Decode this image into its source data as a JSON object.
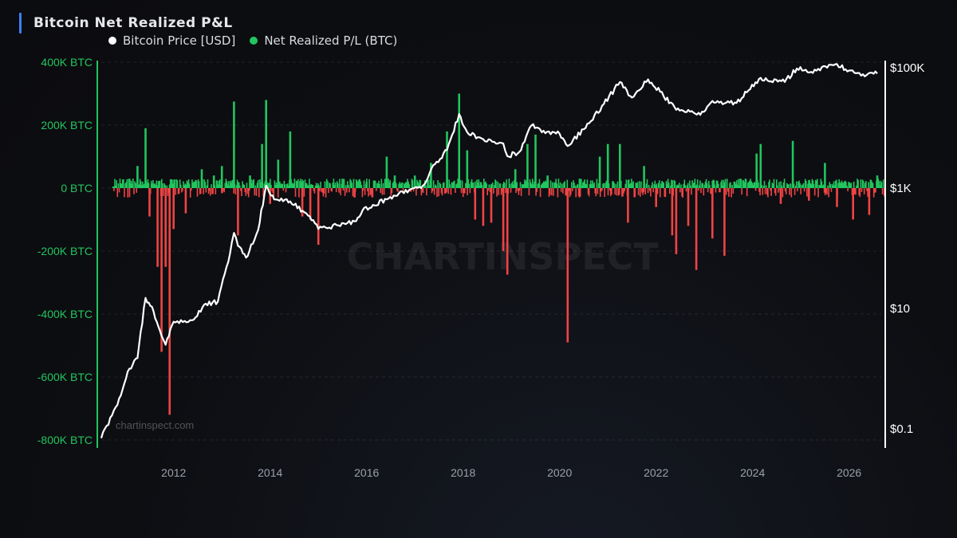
{
  "title": "Bitcoin Net Realized P&L",
  "legend": {
    "price_label": "Bitcoin Price [USD]",
    "pl_label": "Net Realized P/L (BTC)"
  },
  "watermark": "CHARTINSPECT",
  "watermark_small": "chartinspect.com",
  "colors": {
    "price": "#ffffff",
    "profit": "#22c55e",
    "loss": "#ef4444",
    "left_axis": "#22c55e",
    "title_accent": "#3b82f6"
  },
  "chart_data": {
    "type": "bar",
    "title": "Bitcoin Net Realized P&L",
    "grid": true,
    "legend_position": "top-left",
    "x_axis": {
      "type": "date",
      "range": [
        "2010-07",
        "2026-09"
      ],
      "ticks": [
        "2012",
        "2014",
        "2016",
        "2018",
        "2020",
        "2022",
        "2024",
        "2026"
      ]
    },
    "left_axis": {
      "label": "",
      "range": [
        -800000,
        400000
      ],
      "ticks": [
        {
          "value": 400000,
          "label": "400K BTC"
        },
        {
          "value": 200000,
          "label": "200K BTC"
        },
        {
          "value": 0,
          "label": "0 BTC"
        },
        {
          "value": -200000,
          "label": "-200K BTC"
        },
        {
          "value": -400000,
          "label": "-400K BTC"
        },
        {
          "value": -600000,
          "label": "-600K BTC"
        },
        {
          "value": -800000,
          "label": "-800K BTC"
        }
      ]
    },
    "right_axis": {
      "label": "",
      "scale": "log",
      "range": [
        0.05,
        300000
      ],
      "ticks": [
        {
          "value": 100000,
          "label": "$100K"
        },
        {
          "value": 1000,
          "label": "$1K"
        },
        {
          "value": 10,
          "label": "$10"
        },
        {
          "value": 0.1,
          "label": "$0.1"
        }
      ]
    },
    "series": [
      {
        "name": "Bitcoin Price [USD]",
        "type": "line",
        "axis": "right",
        "points": [
          [
            "2010-07",
            0.07
          ],
          [
            "2010-11",
            0.25
          ],
          [
            "2011-02",
            1.0
          ],
          [
            "2011-04",
            1.5
          ],
          [
            "2011-06",
            15
          ],
          [
            "2011-08",
            9
          ],
          [
            "2011-10",
            3.5
          ],
          [
            "2011-11",
            2.5
          ],
          [
            "2012-01",
            6
          ],
          [
            "2012-06",
            6.5
          ],
          [
            "2012-09",
            12
          ],
          [
            "2012-12",
            13
          ],
          [
            "2013-03",
            80
          ],
          [
            "2013-04",
            180
          ],
          [
            "2013-05",
            110
          ],
          [
            "2013-07",
            70
          ],
          [
            "2013-10",
            200
          ],
          [
            "2013-12",
            1100
          ],
          [
            "2014-02",
            650
          ],
          [
            "2014-06",
            600
          ],
          [
            "2014-10",
            380
          ],
          [
            "2015-01",
            210
          ],
          [
            "2015-06",
            240
          ],
          [
            "2015-10",
            280
          ],
          [
            "2015-12",
            430
          ],
          [
            "2016-06",
            650
          ],
          [
            "2016-12",
            960
          ],
          [
            "2017-03",
            1100
          ],
          [
            "2017-06",
            2500
          ],
          [
            "2017-09",
            4300
          ],
          [
            "2017-12",
            17000
          ],
          [
            "2018-02",
            8500
          ],
          [
            "2018-06",
            6500
          ],
          [
            "2018-11",
            5500
          ],
          [
            "2018-12",
            3400
          ],
          [
            "2019-03",
            4000
          ],
          [
            "2019-06",
            11000
          ],
          [
            "2019-09",
            9000
          ],
          [
            "2020-01",
            8000
          ],
          [
            "2020-03",
            5000
          ],
          [
            "2020-07",
            9500
          ],
          [
            "2020-12",
            25000
          ],
          [
            "2021-04",
            58000
          ],
          [
            "2021-07",
            32000
          ],
          [
            "2021-11",
            64000
          ],
          [
            "2022-02",
            40000
          ],
          [
            "2022-06",
            20000
          ],
          [
            "2022-12",
            16500
          ],
          [
            "2023-03",
            28000
          ],
          [
            "2023-09",
            26000
          ],
          [
            "2023-12",
            42000
          ],
          [
            "2024-03",
            68000
          ],
          [
            "2024-09",
            58000
          ],
          [
            "2024-12",
            97000
          ],
          [
            "2025-04",
            82000
          ],
          [
            "2025-08",
            112000
          ],
          [
            "2025-10",
            115000
          ],
          [
            "2026-01",
            90000
          ],
          [
            "2026-04",
            74000
          ],
          [
            "2026-08",
            80000
          ]
        ]
      },
      {
        "name": "Net Realized P/L (BTC)",
        "type": "bar",
        "axis": "left",
        "points": [
          [
            "2010-10",
            5000
          ],
          [
            "2011-02",
            30000
          ],
          [
            "2011-04",
            70000
          ],
          [
            "2011-06",
            190000
          ],
          [
            "2011-07",
            -90000
          ],
          [
            "2011-09",
            -250000
          ],
          [
            "2011-10",
            -520000
          ],
          [
            "2011-11",
            -250000
          ],
          [
            "2011-12",
            -720000
          ],
          [
            "2012-01",
            -130000
          ],
          [
            "2012-04",
            -80000
          ],
          [
            "2012-08",
            60000
          ],
          [
            "2012-11",
            40000
          ],
          [
            "2013-01",
            70000
          ],
          [
            "2013-04",
            275000
          ],
          [
            "2013-05",
            -150000
          ],
          [
            "2013-08",
            40000
          ],
          [
            "2013-11",
            140000
          ],
          [
            "2013-12",
            280000
          ],
          [
            "2014-01",
            -50000
          ],
          [
            "2014-03",
            90000
          ],
          [
            "2014-06",
            180000
          ],
          [
            "2014-09",
            -90000
          ],
          [
            "2014-11",
            -100000
          ],
          [
            "2015-01",
            -180000
          ],
          [
            "2015-07",
            30000
          ],
          [
            "2015-10",
            -30000
          ],
          [
            "2016-01",
            20000
          ],
          [
            "2016-06",
            100000
          ],
          [
            "2016-08",
            40000
          ],
          [
            "2017-01",
            40000
          ],
          [
            "2017-05",
            80000
          ],
          [
            "2017-09",
            180000
          ],
          [
            "2017-12",
            300000
          ],
          [
            "2018-02",
            120000
          ],
          [
            "2018-04",
            -100000
          ],
          [
            "2018-06",
            -120000
          ],
          [
            "2018-08",
            -110000
          ],
          [
            "2018-11",
            -200000
          ],
          [
            "2018-12",
            -275000
          ],
          [
            "2019-02",
            60000
          ],
          [
            "2019-05",
            140000
          ],
          [
            "2019-07",
            170000
          ],
          [
            "2019-10",
            40000
          ],
          [
            "2020-03",
            -490000
          ],
          [
            "2020-06",
            30000
          ],
          [
            "2020-11",
            100000
          ],
          [
            "2021-01",
            140000
          ],
          [
            "2021-04",
            140000
          ],
          [
            "2021-06",
            -110000
          ],
          [
            "2021-10",
            70000
          ],
          [
            "2022-01",
            -60000
          ],
          [
            "2022-05",
            -150000
          ],
          [
            "2022-06",
            -210000
          ],
          [
            "2022-09",
            -120000
          ],
          [
            "2022-11",
            -260000
          ],
          [
            "2023-03",
            -160000
          ],
          [
            "2023-06",
            -215000
          ],
          [
            "2023-10",
            30000
          ],
          [
            "2024-02",
            110000
          ],
          [
            "2024-03",
            140000
          ],
          [
            "2024-08",
            -50000
          ],
          [
            "2024-11",
            150000
          ],
          [
            "2025-03",
            -40000
          ],
          [
            "2025-07",
            80000
          ],
          [
            "2025-10",
            -60000
          ],
          [
            "2026-02",
            -100000
          ],
          [
            "2026-06",
            -85000
          ],
          [
            "2026-08",
            40000
          ]
        ]
      }
    ]
  }
}
